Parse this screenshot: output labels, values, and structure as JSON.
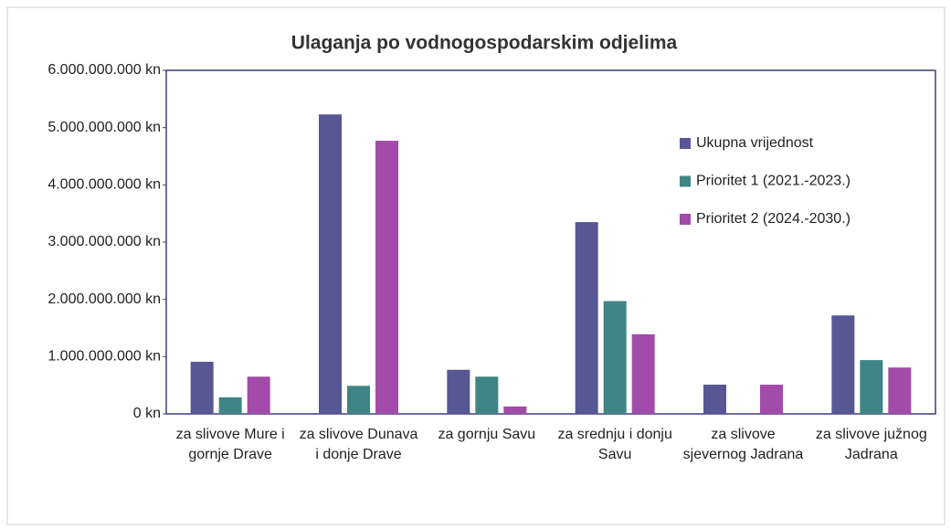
{
  "chart_data": {
    "type": "bar",
    "title": "Ulaganja po vodnogospodarskim odjelima",
    "categories": [
      "za slivove Mure i gornje Drave",
      "za slivove Dunava i donje Drave",
      "za gornju Savu",
      "za srednju i donju Savu",
      "za slivove sjevernog Jadrana",
      "za slivove južnog Jadrana"
    ],
    "series": [
      {
        "name": "Ukupna vrijednost",
        "color": "#575793",
        "values": [
          910000000,
          5230000000,
          770000000,
          3350000000,
          510000000,
          1720000000
        ]
      },
      {
        "name": "Prioritet 1 (2021.-2023.)",
        "color": "#3f8585",
        "values": [
          290000000,
          490000000,
          650000000,
          1970000000,
          0,
          940000000
        ]
      },
      {
        "name": "Prioritet 2 (2024.-2030.)",
        "color": "#a24ba8",
        "values": [
          650000000,
          4770000000,
          130000000,
          1390000000,
          510000000,
          810000000
        ]
      }
    ],
    "ylim": [
      0,
      6000000000
    ],
    "yticks": [
      {
        "value": 0,
        "label": "0 kn"
      },
      {
        "value": 1000000000,
        "label": "1.000.000.000 kn"
      },
      {
        "value": 2000000000,
        "label": "2.000.000.000 kn"
      },
      {
        "value": 3000000000,
        "label": "3.000.000.000 kn"
      },
      {
        "value": 4000000000,
        "label": "4.000.000.000 kn"
      },
      {
        "value": 5000000000,
        "label": "5.000.000.000 kn"
      },
      {
        "value": 6000000000,
        "label": "6.000.000.000 kn"
      }
    ],
    "legend": "top-right"
  }
}
